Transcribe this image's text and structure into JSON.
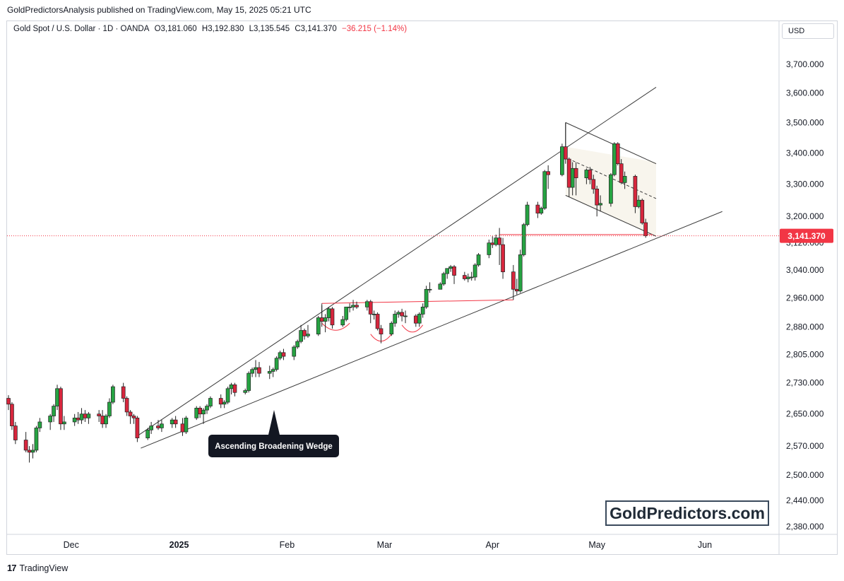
{
  "header": {
    "published": "GoldPredictorsAnalysis published on TradingView.com, May 15, 2025 05:21 UTC"
  },
  "legend": {
    "symbol": "Gold Spot / U.S. Dollar · 1D · OANDA",
    "open": "O3,181.060",
    "high": "H3,192.830",
    "low": "L3,135.545",
    "close": "C3,141.370",
    "change": "−36.215 (−1.14%)"
  },
  "currency": "USD",
  "price_tag": "3,141.370",
  "annotation": "Ascending Broadening Wedge",
  "brand": "GoldPredictors.com",
  "footer": {
    "logo": "17",
    "name": "TradingView"
  },
  "colors": {
    "up": "#26a342",
    "down": "#d7263d",
    "line": "#3a3a3a",
    "support": "#f23645",
    "label_bg": "#131722"
  },
  "chart_data": {
    "type": "candlestick",
    "title": "Gold Spot / U.S. Dollar · 1D · OANDA",
    "ylim": [
      2350,
      3800
    ],
    "y_ticks": [
      "3,700.000",
      "3,600.000",
      "3,500.000",
      "3,400.000",
      "3,300.000",
      "3,200.000",
      "3,120.000",
      "3,040.000",
      "2,960.000",
      "2,880.000",
      "2,805.000",
      "2,730.000",
      "2,650.000",
      "2,570.000",
      "2,500.000",
      "2,440.000",
      "2,380.000"
    ],
    "x_ticks": [
      "Dec",
      "2025",
      "Feb",
      "Mar",
      "Apr",
      "May",
      "Jun"
    ],
    "last_price": 3141.37,
    "candles": [
      {
        "date": "2024-11-13",
        "o": 2690,
        "h": 2698,
        "l": 2660,
        "c": 2675
      },
      {
        "date": "2024-11-14",
        "o": 2675,
        "h": 2680,
        "l": 2610,
        "c": 2620
      },
      {
        "date": "2024-11-15",
        "o": 2620,
        "h": 2630,
        "l": 2575,
        "c": 2585
      },
      {
        "date": "2024-11-18",
        "o": 2585,
        "h": 2605,
        "l": 2555,
        "c": 2560
      },
      {
        "date": "2024-11-19",
        "o": 2560,
        "h": 2570,
        "l": 2530,
        "c": 2555
      },
      {
        "date": "2024-11-20",
        "o": 2555,
        "h": 2575,
        "l": 2540,
        "c": 2560
      },
      {
        "date": "2024-11-21",
        "o": 2560,
        "h": 2620,
        "l": 2555,
        "c": 2615
      },
      {
        "date": "2024-11-22",
        "o": 2615,
        "h": 2640,
        "l": 2605,
        "c": 2630
      },
      {
        "date": "2024-11-25",
        "o": 2630,
        "h": 2650,
        "l": 2610,
        "c": 2645
      },
      {
        "date": "2024-11-26",
        "o": 2645,
        "h": 2675,
        "l": 2630,
        "c": 2670
      },
      {
        "date": "2024-11-27",
        "o": 2670,
        "h": 2725,
        "l": 2660,
        "c": 2715
      },
      {
        "date": "2024-11-28",
        "o": 2715,
        "h": 2720,
        "l": 2610,
        "c": 2625
      },
      {
        "date": "2024-11-29",
        "o": 2625,
        "h": 2645,
        "l": 2610,
        "c": 2630
      },
      {
        "date": "2024-12-02",
        "o": 2630,
        "h": 2650,
        "l": 2620,
        "c": 2640
      },
      {
        "date": "2024-12-03",
        "o": 2640,
        "h": 2655,
        "l": 2625,
        "c": 2635
      },
      {
        "date": "2024-12-04",
        "o": 2635,
        "h": 2665,
        "l": 2625,
        "c": 2650
      },
      {
        "date": "2024-12-05",
        "o": 2650,
        "h": 2660,
        "l": 2630,
        "c": 2640
      },
      {
        "date": "2024-12-06",
        "o": 2640,
        "h": 2655,
        "l": 2625,
        "c": 2650
      },
      {
        "date": "2024-12-09",
        "o": 2650,
        "h": 2660,
        "l": 2630,
        "c": 2645
      },
      {
        "date": "2024-12-10",
        "o": 2645,
        "h": 2660,
        "l": 2615,
        "c": 2625
      },
      {
        "date": "2024-12-11",
        "o": 2625,
        "h": 2650,
        "l": 2615,
        "c": 2645
      },
      {
        "date": "2024-12-12",
        "o": 2645,
        "h": 2690,
        "l": 2640,
        "c": 2680
      },
      {
        "date": "2024-12-13",
        "o": 2680,
        "h": 2725,
        "l": 2675,
        "c": 2720
      },
      {
        "date": "2024-12-16",
        "o": 2720,
        "h": 2730,
        "l": 2680,
        "c": 2690
      },
      {
        "date": "2024-12-17",
        "o": 2690,
        "h": 2695,
        "l": 2645,
        "c": 2655
      },
      {
        "date": "2024-12-18",
        "o": 2655,
        "h": 2660,
        "l": 2625,
        "c": 2645
      },
      {
        "date": "2024-12-19",
        "o": 2645,
        "h": 2650,
        "l": 2625,
        "c": 2640
      },
      {
        "date": "2024-12-20",
        "o": 2640,
        "h": 2645,
        "l": 2580,
        "c": 2590
      },
      {
        "date": "2024-12-23",
        "o": 2590,
        "h": 2615,
        "l": 2585,
        "c": 2610
      },
      {
        "date": "2024-12-24",
        "o": 2610,
        "h": 2630,
        "l": 2600,
        "c": 2620
      },
      {
        "date": "2024-12-26",
        "o": 2620,
        "h": 2635,
        "l": 2610,
        "c": 2615
      },
      {
        "date": "2024-12-27",
        "o": 2615,
        "h": 2635,
        "l": 2605,
        "c": 2625
      },
      {
        "date": "2024-12-30",
        "o": 2625,
        "h": 2640,
        "l": 2615,
        "c": 2635
      },
      {
        "date": "2024-12-31",
        "o": 2635,
        "h": 2645,
        "l": 2615,
        "c": 2625
      },
      {
        "date": "2025-01-02",
        "o": 2625,
        "h": 2640,
        "l": 2595,
        "c": 2605
      },
      {
        "date": "2025-01-03",
        "o": 2605,
        "h": 2645,
        "l": 2600,
        "c": 2640
      },
      {
        "date": "2025-01-06",
        "o": 2640,
        "h": 2670,
        "l": 2635,
        "c": 2665
      },
      {
        "date": "2025-01-07",
        "o": 2665,
        "h": 2670,
        "l": 2640,
        "c": 2650
      },
      {
        "date": "2025-01-08",
        "o": 2650,
        "h": 2665,
        "l": 2625,
        "c": 2660
      },
      {
        "date": "2025-01-09",
        "o": 2660,
        "h": 2675,
        "l": 2650,
        "c": 2670
      },
      {
        "date": "2025-01-10",
        "o": 2670,
        "h": 2695,
        "l": 2665,
        "c": 2690
      },
      {
        "date": "2025-01-13",
        "o": 2690,
        "h": 2700,
        "l": 2665,
        "c": 2675
      },
      {
        "date": "2025-01-14",
        "o": 2675,
        "h": 2685,
        "l": 2665,
        "c": 2680
      },
      {
        "date": "2025-01-15",
        "o": 2680,
        "h": 2720,
        "l": 2675,
        "c": 2715
      },
      {
        "date": "2025-01-16",
        "o": 2715,
        "h": 2730,
        "l": 2700,
        "c": 2725
      },
      {
        "date": "2025-01-17",
        "o": 2725,
        "h": 2730,
        "l": 2695,
        "c": 2705
      },
      {
        "date": "2025-01-20",
        "o": 2705,
        "h": 2715,
        "l": 2700,
        "c": 2710
      },
      {
        "date": "2025-01-21",
        "o": 2710,
        "h": 2760,
        "l": 2705,
        "c": 2755
      },
      {
        "date": "2025-01-22",
        "o": 2755,
        "h": 2770,
        "l": 2745,
        "c": 2765
      },
      {
        "date": "2025-01-23",
        "o": 2765,
        "h": 2790,
        "l": 2745,
        "c": 2770
      },
      {
        "date": "2025-01-24",
        "o": 2770,
        "h": 2785,
        "l": 2745,
        "c": 2755
      },
      {
        "date": "2025-01-27",
        "o": 2755,
        "h": 2775,
        "l": 2740,
        "c": 2760
      },
      {
        "date": "2025-01-28",
        "o": 2760,
        "h": 2770,
        "l": 2745,
        "c": 2765
      },
      {
        "date": "2025-01-29",
        "o": 2765,
        "h": 2800,
        "l": 2760,
        "c": 2795
      },
      {
        "date": "2025-01-30",
        "o": 2795,
        "h": 2815,
        "l": 2790,
        "c": 2810
      },
      {
        "date": "2025-01-31",
        "o": 2810,
        "h": 2820,
        "l": 2790,
        "c": 2800
      },
      {
        "date": "2025-02-03",
        "o": 2800,
        "h": 2830,
        "l": 2790,
        "c": 2825
      },
      {
        "date": "2025-02-04",
        "o": 2825,
        "h": 2845,
        "l": 2820,
        "c": 2840
      },
      {
        "date": "2025-02-05",
        "o": 2840,
        "h": 2885,
        "l": 2835,
        "c": 2870
      },
      {
        "date": "2025-02-06",
        "o": 2870,
        "h": 2875,
        "l": 2845,
        "c": 2855
      },
      {
        "date": "2025-02-07",
        "o": 2855,
        "h": 2885,
        "l": 2850,
        "c": 2860
      },
      {
        "date": "2025-02-10",
        "o": 2860,
        "h": 2910,
        "l": 2855,
        "c": 2905
      },
      {
        "date": "2025-02-11",
        "o": 2905,
        "h": 2940,
        "l": 2880,
        "c": 2895
      },
      {
        "date": "2025-02-12",
        "o": 2895,
        "h": 2915,
        "l": 2865,
        "c": 2905
      },
      {
        "date": "2025-02-13",
        "o": 2905,
        "h": 2935,
        "l": 2895,
        "c": 2930
      },
      {
        "date": "2025-02-14",
        "o": 2930,
        "h": 2935,
        "l": 2875,
        "c": 2885
      },
      {
        "date": "2025-02-17",
        "o": 2885,
        "h": 2910,
        "l": 2880,
        "c": 2900
      },
      {
        "date": "2025-02-18",
        "o": 2900,
        "h": 2935,
        "l": 2895,
        "c": 2935
      },
      {
        "date": "2025-02-19",
        "o": 2935,
        "h": 2945,
        "l": 2920,
        "c": 2935
      },
      {
        "date": "2025-02-20",
        "o": 2935,
        "h": 2955,
        "l": 2925,
        "c": 2940
      },
      {
        "date": "2025-02-21",
        "o": 2940,
        "h": 2950,
        "l": 2930,
        "c": 2935
      },
      {
        "date": "2025-02-24",
        "o": 2935,
        "h": 2955,
        "l": 2925,
        "c": 2950
      },
      {
        "date": "2025-02-25",
        "o": 2950,
        "h": 2955,
        "l": 2890,
        "c": 2915
      },
      {
        "date": "2025-02-26",
        "o": 2915,
        "h": 2925,
        "l": 2900,
        "c": 2915
      },
      {
        "date": "2025-02-27",
        "o": 2915,
        "h": 2920,
        "l": 2870,
        "c": 2875
      },
      {
        "date": "2025-02-28",
        "o": 2875,
        "h": 2885,
        "l": 2835,
        "c": 2860
      },
      {
        "date": "2025-03-03",
        "o": 2860,
        "h": 2895,
        "l": 2855,
        "c": 2890
      },
      {
        "date": "2025-03-04",
        "o": 2890,
        "h": 2925,
        "l": 2880,
        "c": 2915
      },
      {
        "date": "2025-03-05",
        "o": 2915,
        "h": 2925,
        "l": 2905,
        "c": 2920
      },
      {
        "date": "2025-03-06",
        "o": 2920,
        "h": 2930,
        "l": 2895,
        "c": 2910
      },
      {
        "date": "2025-03-07",
        "o": 2910,
        "h": 2925,
        "l": 2890,
        "c": 2910
      },
      {
        "date": "2025-03-10",
        "o": 2910,
        "h": 2915,
        "l": 2880,
        "c": 2890
      },
      {
        "date": "2025-03-11",
        "o": 2890,
        "h": 2920,
        "l": 2880,
        "c": 2915
      },
      {
        "date": "2025-03-12",
        "o": 2915,
        "h": 2945,
        "l": 2905,
        "c": 2935
      },
      {
        "date": "2025-03-13",
        "o": 2935,
        "h": 2995,
        "l": 2930,
        "c": 2985
      },
      {
        "date": "2025-03-14",
        "o": 2985,
        "h": 3005,
        "l": 2975,
        "c": 2985
      },
      {
        "date": "2025-03-17",
        "o": 2985,
        "h": 3005,
        "l": 2985,
        "c": 3000
      },
      {
        "date": "2025-03-18",
        "o": 3000,
        "h": 3035,
        "l": 2995,
        "c": 3030
      },
      {
        "date": "2025-03-19",
        "o": 3030,
        "h": 3045,
        "l": 3015,
        "c": 3045
      },
      {
        "date": "2025-03-20",
        "o": 3045,
        "h": 3055,
        "l": 3035,
        "c": 3050
      },
      {
        "date": "2025-03-21",
        "o": 3050,
        "h": 3055,
        "l": 3000,
        "c": 3025
      },
      {
        "date": "2025-03-24",
        "o": 3025,
        "h": 3035,
        "l": 3010,
        "c": 3015
      },
      {
        "date": "2025-03-25",
        "o": 3015,
        "h": 3030,
        "l": 3005,
        "c": 3020
      },
      {
        "date": "2025-03-26",
        "o": 3020,
        "h": 3035,
        "l": 3010,
        "c": 3020
      },
      {
        "date": "2025-03-27",
        "o": 3020,
        "h": 3060,
        "l": 3010,
        "c": 3055
      },
      {
        "date": "2025-03-28",
        "o": 3055,
        "h": 3090,
        "l": 3050,
        "c": 3085
      },
      {
        "date": "2025-03-31",
        "o": 3085,
        "h": 3130,
        "l": 3075,
        "c": 3120
      },
      {
        "date": "2025-04-01",
        "o": 3120,
        "h": 3140,
        "l": 3105,
        "c": 3115
      },
      {
        "date": "2025-04-02",
        "o": 3115,
        "h": 3145,
        "l": 3110,
        "c": 3135
      },
      {
        "date": "2025-04-03",
        "o": 3135,
        "h": 3165,
        "l": 3055,
        "c": 3115
      },
      {
        "date": "2025-04-04",
        "o": 3115,
        "h": 3135,
        "l": 3015,
        "c": 3035
      },
      {
        "date": "2025-04-07",
        "o": 3035,
        "h": 3055,
        "l": 2955,
        "c": 2985
      },
      {
        "date": "2025-04-08",
        "o": 2985,
        "h": 3015,
        "l": 2970,
        "c": 2980
      },
      {
        "date": "2025-04-09",
        "o": 2980,
        "h": 3100,
        "l": 2975,
        "c": 3085
      },
      {
        "date": "2025-04-10",
        "o": 3085,
        "h": 3180,
        "l": 3080,
        "c": 3175
      },
      {
        "date": "2025-04-11",
        "o": 3175,
        "h": 3245,
        "l": 3170,
        "c": 3235
      },
      {
        "date": "2025-04-14",
        "o": 3235,
        "h": 3245,
        "l": 3195,
        "c": 3210
      },
      {
        "date": "2025-04-15",
        "o": 3210,
        "h": 3230,
        "l": 3205,
        "c": 3225
      },
      {
        "date": "2025-04-16",
        "o": 3225,
        "h": 3345,
        "l": 3220,
        "c": 3340
      },
      {
        "date": "2025-04-17",
        "o": 3340,
        "h": 3360,
        "l": 3285,
        "c": 3330
      },
      {
        "date": "2025-04-21",
        "o": 3330,
        "h": 3430,
        "l": 3325,
        "c": 3420
      },
      {
        "date": "2025-04-22",
        "o": 3420,
        "h": 3500,
        "l": 3365,
        "c": 3380
      },
      {
        "date": "2025-04-23",
        "o": 3380,
        "h": 3385,
        "l": 3260,
        "c": 3290
      },
      {
        "date": "2025-04-24",
        "o": 3290,
        "h": 3370,
        "l": 3265,
        "c": 3350
      },
      {
        "date": "2025-04-25",
        "o": 3350,
        "h": 3370,
        "l": 3265,
        "c": 3320
      },
      {
        "date": "2025-04-28",
        "o": 3320,
        "h": 3350,
        "l": 3300,
        "c": 3345
      },
      {
        "date": "2025-04-29",
        "o": 3345,
        "h": 3355,
        "l": 3300,
        "c": 3315
      },
      {
        "date": "2025-04-30",
        "o": 3315,
        "h": 3330,
        "l": 3270,
        "c": 3285
      },
      {
        "date": "2025-05-01",
        "o": 3285,
        "h": 3295,
        "l": 3200,
        "c": 3235
      },
      {
        "date": "2025-05-02",
        "o": 3235,
        "h": 3265,
        "l": 3215,
        "c": 3240
      },
      {
        "date": "2025-05-05",
        "o": 3240,
        "h": 3335,
        "l": 3230,
        "c": 3330
      },
      {
        "date": "2025-05-06",
        "o": 3330,
        "h": 3435,
        "l": 3325,
        "c": 3430
      },
      {
        "date": "2025-05-07",
        "o": 3430,
        "h": 3435,
        "l": 3360,
        "c": 3365
      },
      {
        "date": "2025-05-08",
        "o": 3365,
        "h": 3380,
        "l": 3300,
        "c": 3305
      },
      {
        "date": "2025-05-09",
        "o": 3305,
        "h": 3340,
        "l": 3285,
        "c": 3325
      },
      {
        "date": "2025-05-12",
        "o": 3325,
        "h": 3330,
        "l": 3210,
        "c": 3230
      },
      {
        "date": "2025-05-13",
        "o": 3230,
        "h": 3265,
        "l": 3225,
        "c": 3250
      },
      {
        "date": "2025-05-14",
        "o": 3250,
        "h": 3255,
        "l": 3175,
        "c": 3180
      },
      {
        "date": "2025-05-15",
        "o": 3181.06,
        "h": 3192.83,
        "l": 3135.545,
        "c": 3141.37
      }
    ]
  }
}
